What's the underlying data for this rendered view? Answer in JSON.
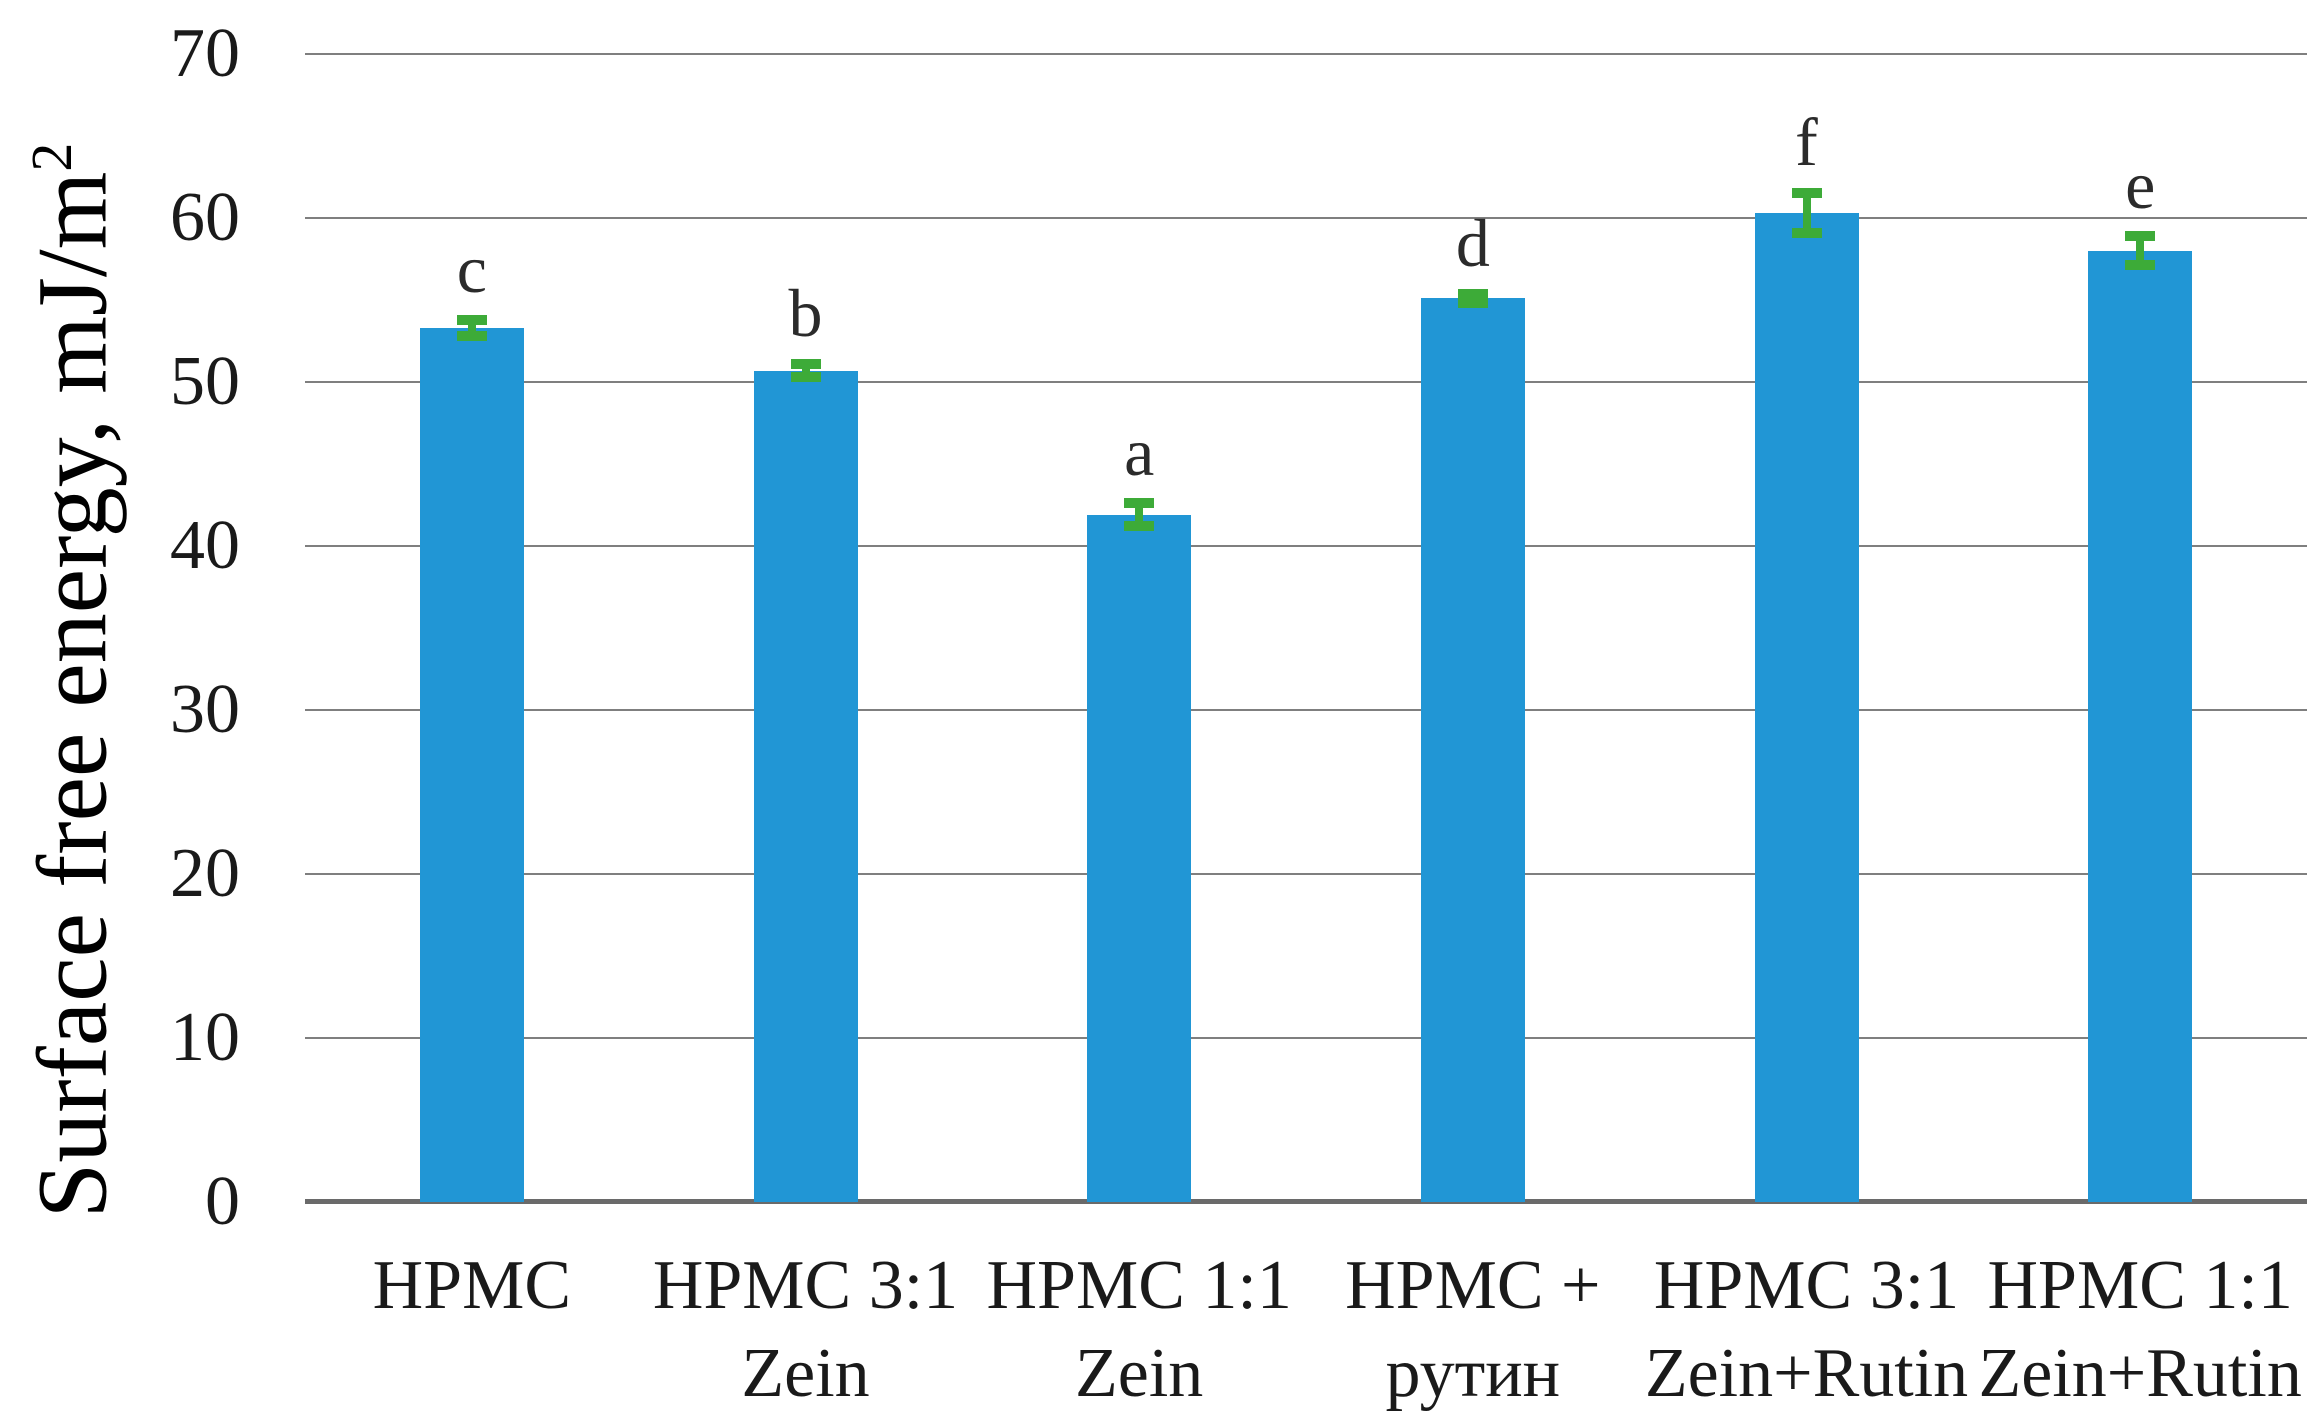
{
  "figure": {
    "background": "#ffffff",
    "kind": "bar chart with error bars and significance letters"
  },
  "axis": {
    "ylabel": "Surface free energy, mJ/m²",
    "ylabel_main": "Surface free energy, mJ/m",
    "ylabel_sup": "2"
  },
  "chart_data": {
    "type": "bar",
    "title": "",
    "xlabel": "",
    "ylabel": "Surface free energy, mJ/m²",
    "ylim": [
      0,
      70
    ],
    "yticks": [
      0,
      10,
      20,
      30,
      40,
      50,
      60,
      70
    ],
    "grid": true,
    "legend": "none",
    "categories": [
      [
        "HPMC"
      ],
      [
        "HPMC 3:1",
        "Zein"
      ],
      [
        "HPMC 1:1",
        "Zein"
      ],
      [
        "HPMC +",
        "рутин"
      ],
      [
        "HPMC 3:1",
        "Zein+Rutin"
      ],
      [
        "HPMC 1:1",
        "Zein+Rutin"
      ]
    ],
    "values": [
      53.3,
      50.7,
      41.9,
      55.1,
      60.3,
      58.0
    ],
    "errors": [
      0.8,
      0.7,
      1.0,
      0.6,
      1.5,
      1.2
    ],
    "sig_letters": [
      "c",
      "b",
      "a",
      "d",
      "f",
      "e"
    ],
    "colors": {
      "bar": "#2196d5",
      "error_bar": "#3dab38",
      "gridline": "#7f7f7f",
      "axis_line": "#6a6a6a",
      "text": "#1a1a1a"
    }
  }
}
